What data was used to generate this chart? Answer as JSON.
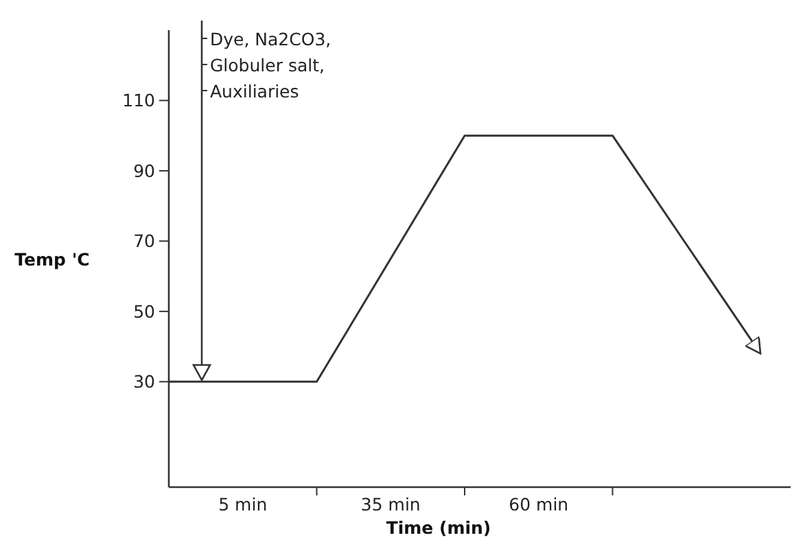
{
  "chart_data": {
    "type": "line",
    "ylabel": "Temp 'C",
    "xlabel": "Time (min)",
    "categories": [
      null,
      "5 min",
      null,
      "35 min",
      null,
      "60 min",
      null,
      null,
      null
    ],
    "series": [
      {
        "color": "#333333",
        "values": [
          30,
          30,
          30,
          65,
          100,
          100,
          100,
          69,
          38
        ]
      }
    ],
    "ylim": [
      0,
      130
    ],
    "yticks": [
      30,
      50,
      70,
      90,
      110
    ],
    "annotations": [
      "Dye, Na2CO3,\nGlobuler salt,\nAuxiliaries"
    ],
    "marker": "none",
    "line_style": "solid"
  }
}
